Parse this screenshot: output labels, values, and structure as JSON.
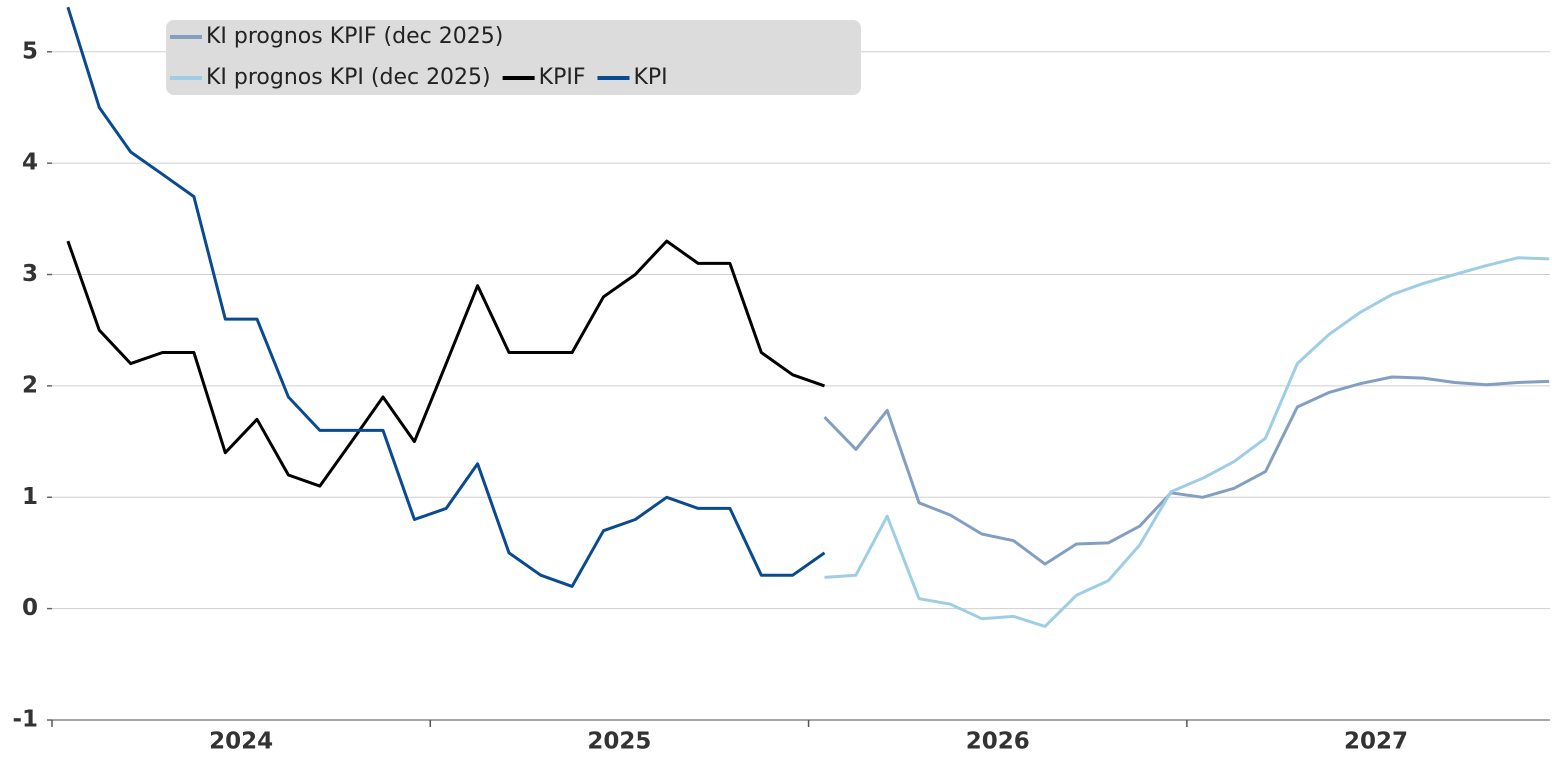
{
  "chart_data": {
    "type": "line",
    "legend": "top-left",
    "grid": true,
    "ylim": [
      -1,
      5.42
    ],
    "yticks": [
      -1,
      0,
      1,
      2,
      3,
      4,
      5
    ],
    "xlim": [
      2024,
      2027.96
    ],
    "xticks": [
      2024,
      2025,
      2026,
      2027
    ],
    "xtick_labels": [
      {
        "value": 2024.5,
        "label": "2024"
      },
      {
        "value": 2025.5,
        "label": "2025"
      },
      {
        "value": 2026.5,
        "label": "2026"
      },
      {
        "value": 2027.5,
        "label": "2027"
      }
    ],
    "series": [
      {
        "name": "KI prognos KPIF (dec 2025)",
        "color": "#829fc2",
        "x": [
          2026.042,
          2026.125,
          2026.208,
          2026.292,
          2026.375,
          2026.458,
          2026.542,
          2026.625,
          2026.708,
          2026.792,
          2026.875,
          2026.958,
          2027.042,
          2027.125,
          2027.208,
          2027.292,
          2027.375,
          2027.458,
          2027.542,
          2027.625,
          2027.708,
          2027.792,
          2027.875,
          2027.958
        ],
        "values": [
          1.72,
          1.43,
          1.78,
          0.95,
          0.84,
          0.67,
          0.61,
          0.4,
          0.58,
          0.59,
          0.74,
          1.04,
          1.0,
          1.08,
          1.23,
          1.81,
          1.94,
          2.02,
          2.08,
          2.07,
          2.03,
          2.01,
          2.03,
          2.04
        ]
      },
      {
        "name": "KI prognos KPI (dec 2025)",
        "color": "#9fcde6",
        "x": [
          2026.042,
          2026.125,
          2026.208,
          2026.292,
          2026.375,
          2026.458,
          2026.542,
          2026.625,
          2026.708,
          2026.792,
          2026.875,
          2026.958,
          2027.042,
          2027.125,
          2027.208,
          2027.292,
          2027.375,
          2027.458,
          2027.542,
          2027.625,
          2027.708,
          2027.792,
          2027.875,
          2027.958
        ],
        "values": [
          0.28,
          0.3,
          0.83,
          0.09,
          0.04,
          -0.09,
          -0.07,
          -0.16,
          0.12,
          0.25,
          0.57,
          1.05,
          1.17,
          1.32,
          1.53,
          2.2,
          2.46,
          2.66,
          2.82,
          2.92,
          3.0,
          3.08,
          3.15,
          3.14
        ]
      },
      {
        "name": "KPIF",
        "color": "#000000",
        "x": [
          2024.042,
          2024.125,
          2024.208,
          2024.292,
          2024.375,
          2024.458,
          2024.542,
          2024.625,
          2024.708,
          2024.792,
          2024.875,
          2024.958,
          2025.042,
          2025.125,
          2025.208,
          2025.292,
          2025.375,
          2025.458,
          2025.542,
          2025.625,
          2025.708,
          2025.792,
          2025.875,
          2025.958,
          2026.042
        ],
        "values": [
          3.3,
          2.5,
          2.2,
          2.3,
          2.3,
          1.4,
          1.7,
          1.2,
          1.1,
          1.5,
          1.9,
          1.5,
          2.2,
          2.9,
          2.3,
          2.3,
          2.3,
          2.8,
          3.0,
          3.3,
          3.1,
          3.1,
          2.3,
          2.1,
          2.0
        ]
      },
      {
        "name": "KPI",
        "color": "#0a4a8f",
        "x": [
          2024.042,
          2024.125,
          2024.208,
          2024.292,
          2024.375,
          2024.458,
          2024.542,
          2024.625,
          2024.708,
          2024.792,
          2024.875,
          2024.958,
          2025.042,
          2025.125,
          2025.208,
          2025.292,
          2025.375,
          2025.458,
          2025.542,
          2025.625,
          2025.708,
          2025.792,
          2025.875,
          2025.958,
          2026.042
        ],
        "values": [
          5.4,
          4.5,
          4.1,
          3.9,
          3.7,
          2.6,
          2.6,
          1.9,
          1.6,
          1.6,
          1.6,
          0.8,
          0.9,
          1.3,
          0.5,
          0.3,
          0.2,
          0.7,
          0.8,
          1.0,
          0.9,
          0.9,
          0.3,
          0.3,
          0.5
        ]
      }
    ]
  }
}
